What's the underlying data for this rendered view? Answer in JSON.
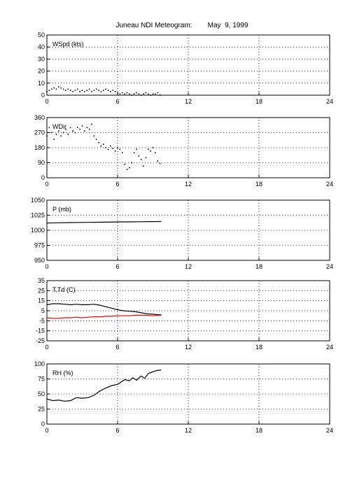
{
  "title": "Juneau NDI Meteogram:        May  9, 1999",
  "chart_data": [
    {
      "type": "scatter",
      "label": "WSpd (kts)",
      "xlim": [
        0,
        24
      ],
      "xticks": [
        0,
        6,
        12,
        18,
        24
      ],
      "ylim": [
        0,
        50
      ],
      "yticks": [
        0,
        10,
        20,
        30,
        40,
        50
      ],
      "grid": true,
      "series": [
        {
          "color": "#000000",
          "x": [
            0.0,
            0.2,
            0.4,
            0.6,
            0.8,
            1.0,
            1.2,
            1.4,
            1.6,
            1.8,
            2.0,
            2.2,
            2.4,
            2.6,
            2.8,
            3.0,
            3.2,
            3.4,
            3.6,
            3.8,
            4.0,
            4.2,
            4.4,
            4.6,
            4.8,
            5.0,
            5.2,
            5.4,
            5.6,
            5.8,
            6.0,
            6.2,
            6.4,
            6.6,
            6.8,
            7.0,
            7.2,
            7.4,
            7.6,
            7.8,
            8.0,
            8.2,
            8.4,
            8.6,
            8.8,
            9.0,
            9.2,
            9.4,
            9.6
          ],
          "y": [
            3,
            4,
            5,
            6,
            5,
            7,
            6,
            5,
            4,
            5,
            4,
            3,
            4,
            5,
            3,
            4,
            3,
            4,
            5,
            3,
            4,
            5,
            4,
            3,
            4,
            5,
            4,
            3,
            4,
            3,
            2,
            1,
            2,
            1,
            2,
            1,
            0,
            1,
            2,
            1,
            0,
            1,
            2,
            1,
            0,
            1,
            1,
            2,
            0
          ]
        }
      ]
    },
    {
      "type": "scatter",
      "label": "WDir",
      "xlim": [
        0,
        24
      ],
      "xticks": [
        0,
        6,
        12,
        18,
        24
      ],
      "ylim": [
        0,
        360
      ],
      "yticks": [
        0,
        90,
        180,
        270,
        360
      ],
      "grid": true,
      "series": [
        {
          "color": "#000000",
          "x": [
            0.0,
            0.2,
            0.4,
            0.6,
            0.8,
            1.0,
            1.2,
            1.4,
            1.6,
            1.8,
            2.0,
            2.2,
            2.4,
            2.6,
            2.8,
            3.0,
            3.2,
            3.4,
            3.6,
            3.8,
            4.0,
            4.2,
            4.4,
            4.6,
            4.8,
            5.0,
            5.2,
            5.4,
            5.6,
            5.8,
            6.0,
            6.2,
            6.4,
            6.6,
            6.8,
            7.0,
            7.2,
            7.4,
            7.6,
            7.8,
            8.0,
            8.2,
            8.4,
            8.6,
            8.8,
            9.0,
            9.2,
            9.4,
            9.6
          ],
          "y": [
            250,
            300,
            270,
            230,
            260,
            280,
            250,
            270,
            290,
            260,
            300,
            280,
            270,
            300,
            290,
            310,
            280,
            300,
            290,
            320,
            250,
            230,
            210,
            190,
            200,
            180,
            170,
            190,
            175,
            160,
            180,
            170,
            150,
            80,
            50,
            60,
            90,
            150,
            170,
            130,
            110,
            70,
            120,
            170,
            160,
            180,
            150,
            100,
            85
          ]
        }
      ]
    },
    {
      "type": "line",
      "label": "P (mb)",
      "xlim": [
        0,
        24
      ],
      "xticks": [
        0,
        6,
        12,
        18,
        24
      ],
      "ylim": [
        950,
        1050
      ],
      "yticks": [
        950,
        975,
        1000,
        1025,
        1050
      ],
      "grid": true,
      "series": [
        {
          "color": "#000000",
          "x": [
            0.0,
            1.0,
            2.0,
            3.0,
            4.0,
            5.0,
            6.0,
            7.0,
            8.0,
            9.0,
            9.7
          ],
          "y": [
            1012,
            1012.5,
            1012.8,
            1013,
            1013.3,
            1013.5,
            1013.8,
            1014,
            1014.2,
            1014.4,
            1014.5
          ]
        }
      ]
    },
    {
      "type": "line",
      "label": "T,Td (C)",
      "xlim": [
        0,
        24
      ],
      "xticks": [
        0,
        6,
        12,
        18,
        24
      ],
      "ylim": [
        -25,
        35
      ],
      "yticks": [
        -25,
        -15,
        -5,
        5,
        15,
        25,
        35
      ],
      "grid": true,
      "series": [
        {
          "color": "#000000",
          "x": [
            0.0,
            0.5,
            1.0,
            1.5,
            2.0,
            2.5,
            3.0,
            3.5,
            4.0,
            4.5,
            5.0,
            5.5,
            6.0,
            6.5,
            7.0,
            7.5,
            8.0,
            8.5,
            9.0,
            9.5,
            9.7
          ],
          "y": [
            11,
            12,
            12,
            11.5,
            11,
            11.5,
            11,
            11,
            11.5,
            10.5,
            9,
            7.5,
            6,
            5,
            4.5,
            4,
            3,
            2,
            1.5,
            1,
            1
          ]
        },
        {
          "color": "#ff0000",
          "x": [
            0.0,
            0.5,
            1.0,
            1.5,
            2.0,
            2.5,
            3.0,
            3.5,
            4.0,
            4.5,
            5.0,
            5.5,
            6.0,
            6.5,
            7.0,
            7.5,
            8.0,
            8.5,
            9.0,
            9.5,
            9.7
          ],
          "y": [
            -2,
            -2.5,
            -2.5,
            -2,
            -2,
            -1.5,
            -2,
            -1.5,
            -1,
            -1,
            -0.5,
            -0.5,
            0,
            0,
            0,
            0.5,
            0.5,
            0.5,
            0,
            0.5,
            0.5
          ]
        }
      ]
    },
    {
      "type": "line",
      "label": "RH (%)",
      "xlim": [
        0,
        24
      ],
      "xticks": [
        0,
        6,
        12,
        18,
        24
      ],
      "ylim": [
        0,
        100
      ],
      "yticks": [
        0,
        25,
        50,
        75,
        100
      ],
      "grid": true,
      "series": [
        {
          "color": "#000000",
          "x": [
            0.0,
            0.5,
            1.0,
            1.5,
            2.0,
            2.5,
            3.0,
            3.5,
            4.0,
            4.5,
            5.0,
            5.5,
            6.0,
            6.3,
            6.6,
            7.0,
            7.3,
            7.6,
            8.0,
            8.3,
            8.6,
            9.0,
            9.3,
            9.7
          ],
          "y": [
            42,
            39,
            40,
            38,
            39,
            44,
            43,
            44,
            48,
            55,
            60,
            64,
            66,
            70,
            74,
            72,
            77,
            73,
            80,
            76,
            84,
            87,
            89,
            90
          ]
        }
      ]
    }
  ]
}
